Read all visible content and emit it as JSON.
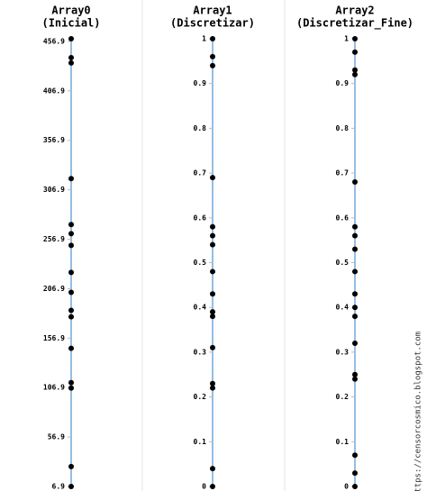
{
  "chart_data": [
    {
      "type": "strip",
      "title": "Array0",
      "subtitle": "(Inicial)",
      "line_color": "#5b9bd5",
      "marker_color": "#000000",
      "values": [
        459.6,
        440.5,
        435.1,
        318.2,
        271.7,
        262.5,
        250.7,
        223.3,
        203.2,
        185.0,
        178.5,
        146.6,
        111.9,
        106.4,
        27.0,
        6.9
      ],
      "ylim": [
        6.9,
        459.6
      ],
      "yticks": [
        6.9,
        56.9,
        106.9,
        156.9,
        206.9,
        256.9,
        306.9,
        356.9,
        406.9,
        456.9
      ]
    },
    {
      "type": "strip",
      "title": "Array1",
      "subtitle": "(Discretizar)",
      "line_color": "#5b9bd5",
      "marker_color": "#000000",
      "values": [
        1,
        0.96,
        0.94,
        0.69,
        0.58,
        0.56,
        0.54,
        0.48,
        0.43,
        0.39,
        0.38,
        0.31,
        0.23,
        0.22,
        0.04,
        0
      ],
      "ylim": [
        0,
        1
      ],
      "yticks": [
        0,
        0.1,
        0.2,
        0.3,
        0.4,
        0.5,
        0.6,
        0.7,
        0.8,
        0.9,
        1
      ]
    },
    {
      "type": "strip",
      "title": "Array2",
      "subtitle": "(Discretizar_Fine)",
      "line_color": "#5b9bd5",
      "marker_color": "#000000",
      "values": [
        1,
        0.97,
        0.93,
        0.92,
        0.68,
        0.58,
        0.56,
        0.53,
        0.48,
        0.43,
        0.4,
        0.38,
        0.32,
        0.25,
        0.24,
        0.07,
        0.03,
        0
      ],
      "ylim": [
        0,
        1
      ],
      "yticks": [
        0,
        0.1,
        0.2,
        0.3,
        0.4,
        0.5,
        0.6,
        0.7,
        0.8,
        0.9,
        1
      ]
    }
  ],
  "watermark": "https://censorcosmico.blogspot.com"
}
